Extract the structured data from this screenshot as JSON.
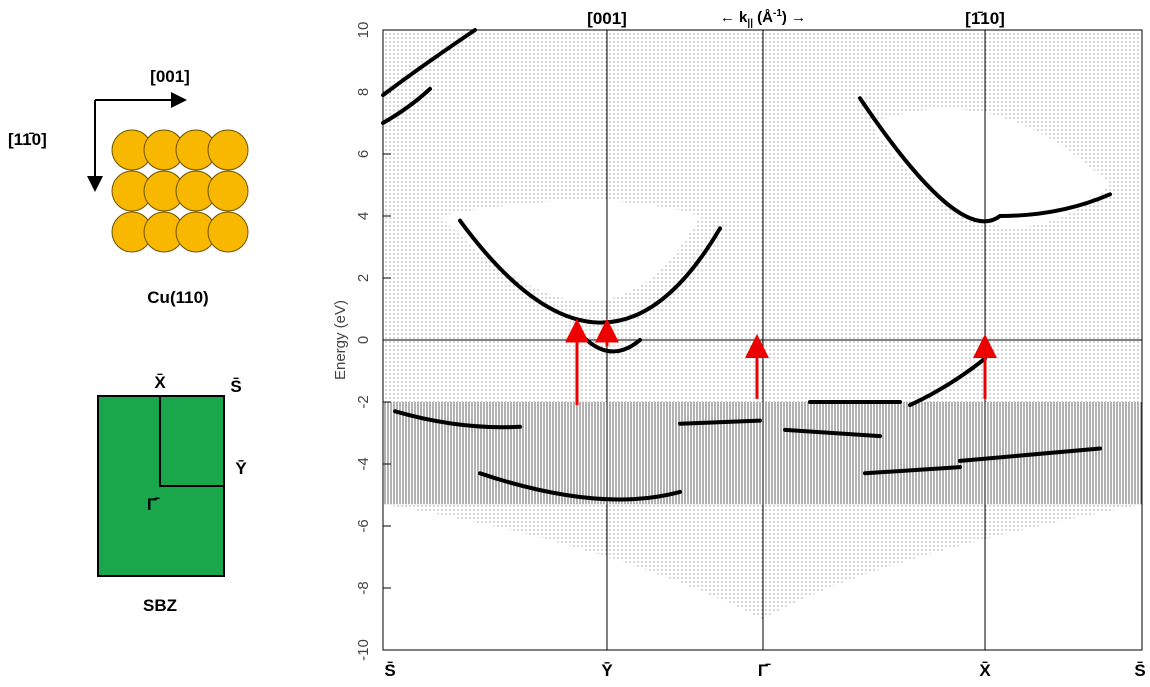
{
  "figure_left": {
    "direction_x": "[001]",
    "direction_y": "[11̄0]",
    "crystal_label": "Cu(110)",
    "sbz_points": {
      "X": "X̄",
      "S": "S̄",
      "Y": "Ȳ",
      "G": "Γ̄"
    },
    "sbz_label": "SBZ"
  },
  "chart_data": {
    "type": "band",
    "ylabel": "Energy (eV)",
    "ylim": [
      -10,
      10
    ],
    "yticks": [
      -10,
      -8,
      -6,
      -4,
      -2,
      0,
      2,
      4,
      6,
      8,
      10
    ],
    "categories": [
      "S̄",
      "Ȳ",
      "Γ̄",
      "X̄",
      "S̄"
    ],
    "top_labels": {
      "left": "[001]",
      "right": "[1̄10]"
    },
    "k_label": {
      "pre": "← k",
      "sub": "||",
      "mid": " (Å",
      "sup": "-1",
      "post": ") →"
    }
  }
}
